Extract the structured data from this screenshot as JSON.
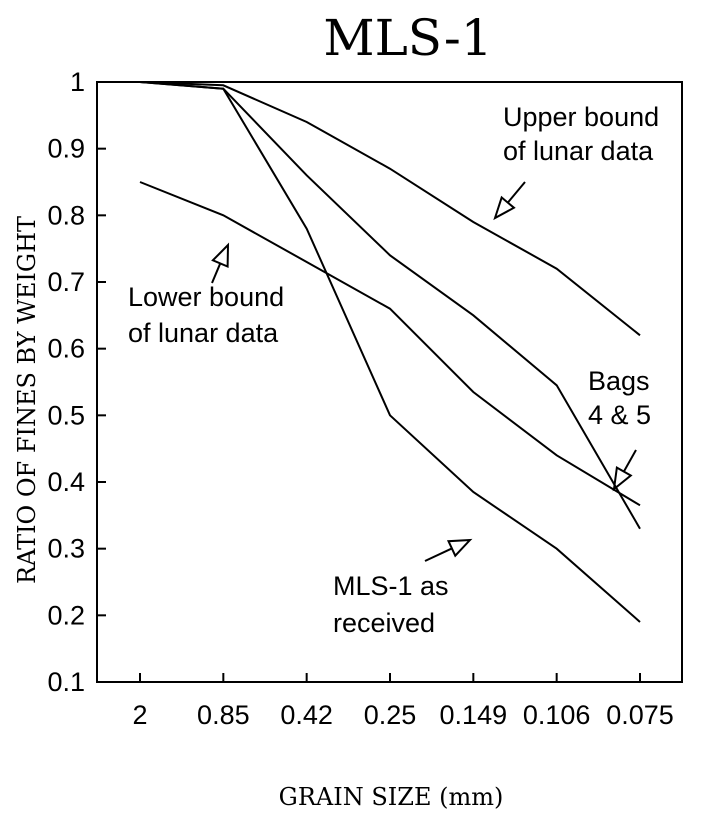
{
  "chart_data": {
    "type": "line",
    "title": "MLS-1",
    "xlabel": "GRAIN SIZE (mm)",
    "ylabel": "RATIO OF FINES BY WEIGHT",
    "categories": [
      "2",
      "0.85",
      "0.42",
      "0.25",
      "0.149",
      "0.106",
      "0.075"
    ],
    "ylim": [
      0.1,
      1.0
    ],
    "y_ticks": [
      "0.1",
      "0.2",
      "0.3",
      "0.4",
      "0.5",
      "0.6",
      "0.7",
      "0.8",
      "0.9",
      "1"
    ],
    "grid": false,
    "series": [
      {
        "values": [
          1.0,
          0.995,
          0.94,
          0.87,
          0.79,
          0.72,
          0.62
        ]
      },
      {
        "values": [
          1.0,
          0.99,
          0.86,
          0.74,
          0.65,
          0.545,
          0.33
        ]
      },
      {
        "values": [
          0.85,
          0.8,
          0.73,
          0.66,
          0.535,
          0.44,
          0.365
        ]
      },
      {
        "values": [
          1.0,
          0.99,
          0.78,
          0.5,
          0.385,
          0.3,
          0.19
        ]
      }
    ],
    "annotations": [
      {
        "lines": [
          "Upper bound",
          "of lunar data"
        ]
      },
      {
        "lines": [
          "Lower bound",
          "of lunar data"
        ]
      },
      {
        "lines": [
          "Bags",
          "4 & 5"
        ]
      },
      {
        "lines": [
          "MLS-1 as",
          "received"
        ]
      }
    ]
  }
}
